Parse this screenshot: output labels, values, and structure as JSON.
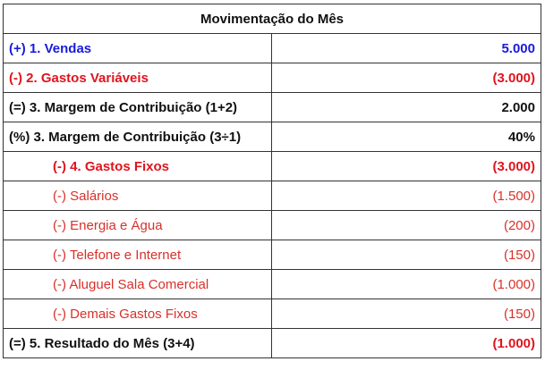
{
  "title": "Movimentação do Mês",
  "colors": {
    "blue": "#1a1adc",
    "red": "#e0141e",
    "light_red": "#d9302a",
    "black": "#111111"
  },
  "rows": [
    {
      "label": "(+) 1.  Vendas",
      "value": "5.000",
      "style": "blue b"
    },
    {
      "label": "(-) 2. Gastos Variáveis",
      "value": "(3.000)",
      "style": "red b"
    },
    {
      "label": "(=) 3. Margem de Contribuição (1+2)",
      "value": "2.000",
      "style": "black b"
    },
    {
      "label": "(%) 3. Margem de Contribuição (3÷1)",
      "value": "40%",
      "style": "black b"
    },
    {
      "label": "(-) 4. Gastos Fixos",
      "value": "(3.000)",
      "style": "red b ind"
    },
    {
      "label": "(-) Salários",
      "value": "(1.500)",
      "style": "lred ind"
    },
    {
      "label": "(-) Energia e Água",
      "value": "(200)",
      "style": "lred ind"
    },
    {
      "label": "(-) Telefone e Internet",
      "value": "(150)",
      "style": "lred ind"
    },
    {
      "label": "(-) Aluguel Sala Comercial",
      "value": "(1.000)",
      "style": "lred ind"
    },
    {
      "label": "(-) Demais Gastos Fixos",
      "value": "(150)",
      "style": "lred ind"
    },
    {
      "label": "(=) 5. Resultado do Mês (3+4)",
      "value": "(1.000)",
      "style": "black b",
      "value_style": "red b"
    }
  ]
}
